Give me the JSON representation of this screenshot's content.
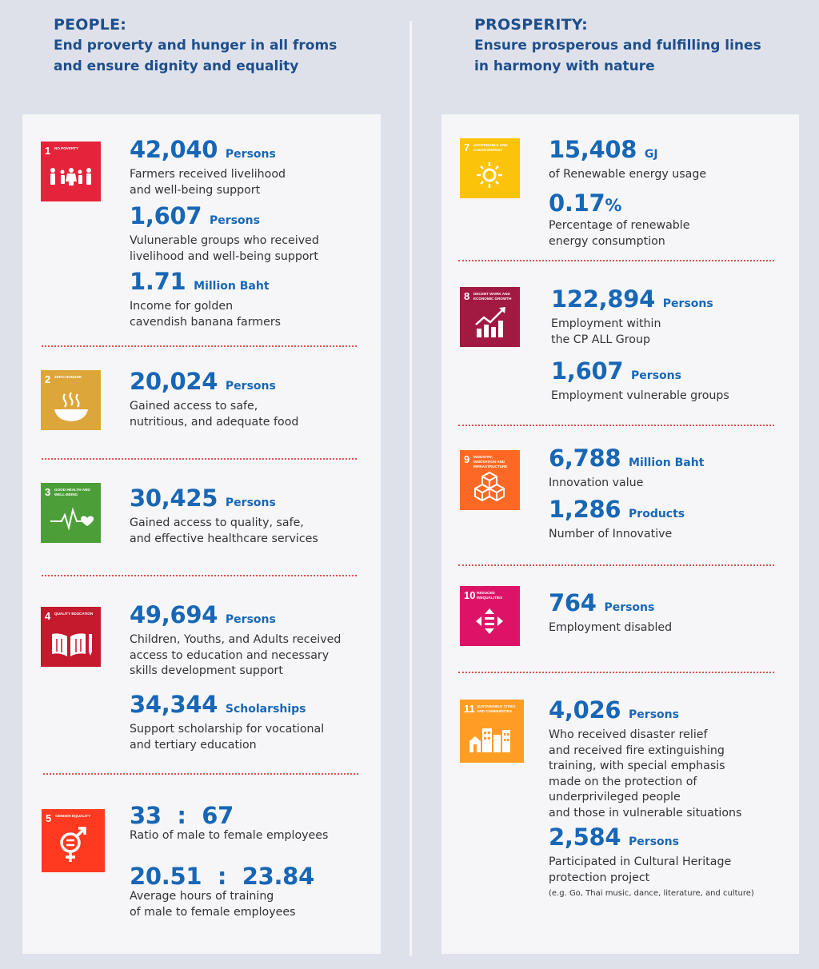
{
  "left": {
    "heading": "PEOPLE:",
    "subheading": "End proverty and hunger in all froms\nand ensure dignity and equality",
    "goals": [
      {
        "number": "1",
        "title": "NO POVERTY",
        "color": "#e5243b",
        "icon": "family-icon"
      },
      {
        "number": "2",
        "title": "ZERO HUNGER",
        "color": "#dda63a",
        "icon": "food-bowl-icon"
      },
      {
        "number": "3",
        "title": "GOOD HEALTH AND WELL-BEING",
        "color": "#4c9f38",
        "icon": "heartbeat-icon"
      },
      {
        "number": "4",
        "title": "QUALITY EDUCATION",
        "color": "#c5192d",
        "icon": "book-pencil-icon"
      },
      {
        "number": "5",
        "title": "GENDER EQUALITY",
        "color": "#ff3a21",
        "icon": "gender-symbol-icon"
      }
    ],
    "stats": [
      {
        "value": "42,040",
        "unit": "Persons",
        "desc": "Farmers received livelihood\nand well-being support"
      },
      {
        "value": "1,607",
        "unit": "Persons",
        "desc": "Vulunerable groups who received\nlivelihood and well-being support"
      },
      {
        "value": "1.71",
        "unit": "Million Baht",
        "desc": "Income for golden\ncavendish banana farmers"
      },
      {
        "value": "20,024",
        "unit": "Persons",
        "desc": "Gained access to safe,\nnutritious, and adequate food"
      },
      {
        "value": "30,425",
        "unit": "Persons",
        "desc": "Gained access to quality, safe,\nand effective healthcare services"
      },
      {
        "value": "49,694",
        "unit": "Persons",
        "desc": "Children, Youths, and Adults received\naccess to education and necessary\nskills development support"
      },
      {
        "value": "34,344",
        "unit": "Scholarships",
        "desc": "Support scholarship for vocational\nand tertiary education"
      },
      {
        "value": "33  :  67",
        "unit": "",
        "desc": "Ratio of male to female employees"
      },
      {
        "value": "20.51  :  23.84",
        "unit": "",
        "desc": "Average hours of training\nof male to female employees"
      }
    ]
  },
  "right": {
    "heading": "PROSPERITY:",
    "subheading": "Ensure prosperous and fulfilling lines\nin harmony with nature",
    "goals": [
      {
        "number": "7",
        "title": "AFFORDABLE AND CLEAN ENERGY",
        "color": "#fcc30b",
        "icon": "sun-icon"
      },
      {
        "number": "8",
        "title": "DECENT WORK AND ECONOMIC GROWTH",
        "color": "#a21942",
        "icon": "growth-chart-icon"
      },
      {
        "number": "9",
        "title": "INDUSTRY, INNOVATION AND INFRASTRUCTURE",
        "color": "#fd6925",
        "icon": "cubes-icon"
      },
      {
        "number": "10",
        "title": "REDUCED INEQUALITIES",
        "color": "#dd1367",
        "icon": "equality-arrows-icon"
      },
      {
        "number": "11",
        "title": "SUSTAINABLE CITIES AND COMMUNITIES",
        "color": "#fd9d24",
        "icon": "city-buildings-icon"
      }
    ],
    "stats": [
      {
        "value": "15,408",
        "unit": "GJ",
        "desc": "of Renewable energy usage"
      },
      {
        "value": "0.17",
        "unit": "%",
        "desc": "Percentage of renewable\nenergy consumption"
      },
      {
        "value": "122,894",
        "unit": "Persons",
        "desc": "Employment within\nthe CP ALL Group"
      },
      {
        "value": "1,607",
        "unit": "Persons",
        "desc": "Employment vulnerable groups"
      },
      {
        "value": "6,788",
        "unit": "Million Baht",
        "desc": "Innovation value"
      },
      {
        "value": "1,286",
        "unit": "Products",
        "desc": "Number of Innovative"
      },
      {
        "value": "764",
        "unit": "Persons",
        "desc": "Employment disabled"
      },
      {
        "value": "4,026",
        "unit": "Persons",
        "desc": "Who received disaster relief\nand received fire extinguishing\ntraining, with special emphasis\nmade on the protection of\nunderprivileged people\nand those in vulnerable situations"
      },
      {
        "value": "2,584",
        "unit": "Persons",
        "desc": "Participated in Cultural Heritage\nprotection project",
        "note": "(e.g. Go, Thai music, dance, literature, and culture)"
      }
    ]
  }
}
